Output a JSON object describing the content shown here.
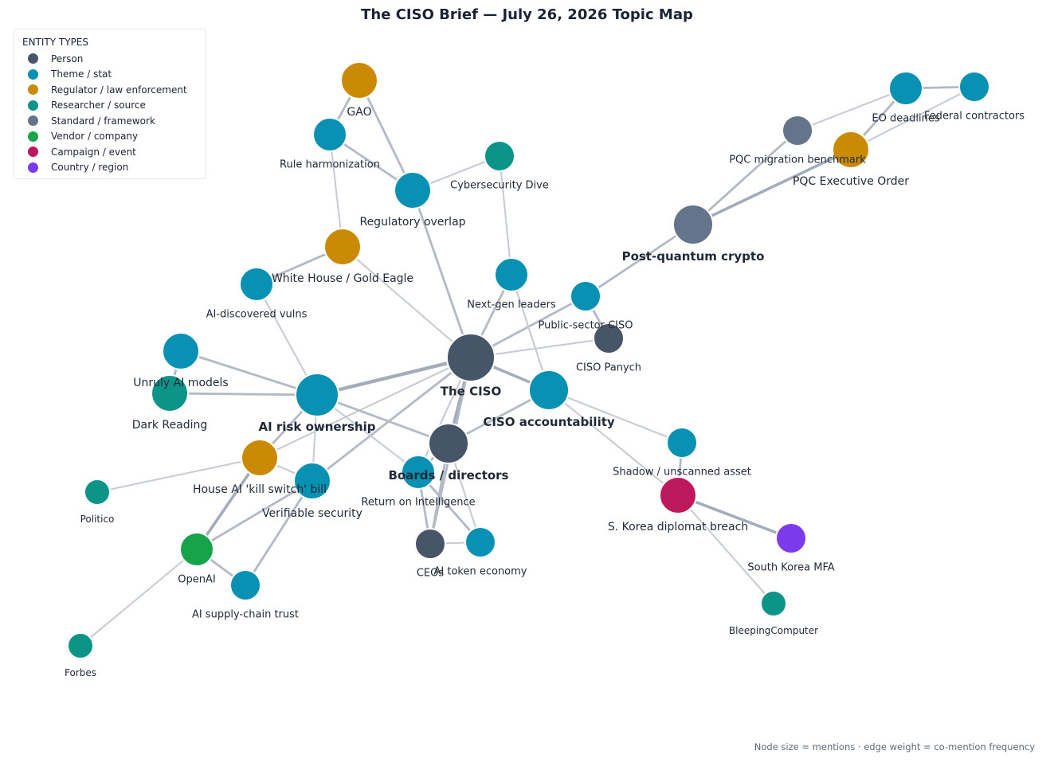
{
  "title": "The CISO Brief — July 26, 2026 Topic Map",
  "legend": {
    "title": "ENTITY TYPES",
    "items": [
      {
        "key": "person",
        "label": "Person",
        "color": "#475569"
      },
      {
        "key": "theme",
        "label": "Theme / stat",
        "color": "#0891b2"
      },
      {
        "key": "regulator",
        "label": "Regulator / law enforcement",
        "color": "#ca8a04"
      },
      {
        "key": "researcher",
        "label": "Researcher / source",
        "color": "#0d9488"
      },
      {
        "key": "standard",
        "label": "Standard / framework",
        "color": "#64748b"
      },
      {
        "key": "vendor",
        "label": "Vendor / company",
        "color": "#16a34a"
      },
      {
        "key": "campaign",
        "label": "Campaign / event",
        "color": "#be185d"
      },
      {
        "key": "country",
        "label": "Country / region",
        "color": "#7c3aed"
      }
    ]
  },
  "footnote": "Node size = mentions  ·  edge weight = co-mention frequency",
  "nodes": [
    {
      "id": "ciso",
      "label": "The CISO",
      "type": "person",
      "bold": true
    },
    {
      "id": "airisk",
      "label": "AI risk ownership",
      "type": "theme",
      "bold": true
    },
    {
      "id": "boards",
      "label": "Boards / directors",
      "type": "person",
      "bold": true
    },
    {
      "id": "cisoacc",
      "label": "CISO accountability",
      "type": "theme",
      "bold": true
    },
    {
      "id": "pqc",
      "label": "Post-quantum crypto",
      "type": "standard",
      "bold": true
    },
    {
      "id": "gao",
      "label": "GAO",
      "type": "regulator"
    },
    {
      "id": "ruleharm",
      "label": "Rule harmonization",
      "type": "theme"
    },
    {
      "id": "regover",
      "label": "Regulatory overlap",
      "type": "theme"
    },
    {
      "id": "cyberdive",
      "label": "Cybersecurity Dive",
      "type": "researcher"
    },
    {
      "id": "whitehouse",
      "label": "White House / Gold Eagle",
      "type": "regulator"
    },
    {
      "id": "aivulns",
      "label": "AI-discovered vulns",
      "type": "theme"
    },
    {
      "id": "nextgen",
      "label": "Next-gen leaders",
      "type": "theme"
    },
    {
      "id": "pubciso",
      "label": "Public-sector CISO",
      "type": "theme"
    },
    {
      "id": "panych",
      "label": "CISO Panych",
      "type": "person"
    },
    {
      "id": "unruly",
      "label": "Unruly AI models",
      "type": "theme"
    },
    {
      "id": "darkreading",
      "label": "Dark Reading",
      "type": "researcher"
    },
    {
      "id": "killswitch",
      "label": "House AI 'kill switch' bill",
      "type": "regulator"
    },
    {
      "id": "verifiable",
      "label": "Verifiable security",
      "type": "theme"
    },
    {
      "id": "politico",
      "label": "Politico",
      "type": "researcher"
    },
    {
      "id": "openai",
      "label": "OpenAI",
      "type": "vendor"
    },
    {
      "id": "supplychain",
      "label": "AI supply-chain trust",
      "type": "theme"
    },
    {
      "id": "forbes",
      "label": "Forbes",
      "type": "researcher"
    },
    {
      "id": "roi",
      "label": "Return on Intelligence",
      "type": "theme"
    },
    {
      "id": "ceos",
      "label": "CEOs",
      "type": "person"
    },
    {
      "id": "aitoken",
      "label": "AI token economy",
      "type": "theme"
    },
    {
      "id": "shadow",
      "label": "Shadow / unscanned asset",
      "type": "theme"
    },
    {
      "id": "skorea",
      "label": "S. Korea diplomat breach",
      "type": "campaign"
    },
    {
      "id": "skmfa",
      "label": "South Korea MFA",
      "type": "country"
    },
    {
      "id": "bleeping",
      "label": "BleepingComputer",
      "type": "researcher"
    },
    {
      "id": "pqcbench",
      "label": "PQC migration benchmark",
      "type": "standard"
    },
    {
      "id": "pqceo",
      "label": "PQC Executive Order",
      "type": "regulator"
    },
    {
      "id": "eodead",
      "label": "EO deadlines",
      "type": "theme"
    },
    {
      "id": "fedcon",
      "label": "Federal contractors",
      "type": "theme"
    }
  ],
  "edges": [
    {
      "source": "ciso",
      "target": "airisk",
      "weight": 5
    },
    {
      "source": "ciso",
      "target": "boards",
      "weight": 4
    },
    {
      "source": "ciso",
      "target": "cisoacc",
      "weight": 4
    },
    {
      "source": "ciso",
      "target": "regover",
      "weight": 3
    },
    {
      "source": "ciso",
      "target": "nextgen",
      "weight": 3
    },
    {
      "source": "ciso",
      "target": "pubciso",
      "weight": 3
    },
    {
      "source": "ciso",
      "target": "panych",
      "weight": 2
    },
    {
      "source": "ciso",
      "target": "whitehouse",
      "weight": 2
    },
    {
      "source": "ciso",
      "target": "verifiable",
      "weight": 3
    },
    {
      "source": "ciso",
      "target": "killswitch",
      "weight": 2
    },
    {
      "source": "ciso",
      "target": "roi",
      "weight": 2
    },
    {
      "source": "ciso",
      "target": "ceos",
      "weight": 3
    },
    {
      "source": "gao",
      "target": "ruleharm",
      "weight": 3
    },
    {
      "source": "gao",
      "target": "regover",
      "weight": 3
    },
    {
      "source": "ruleharm",
      "target": "regover",
      "weight": 3
    },
    {
      "source": "ruleharm",
      "target": "whitehouse",
      "weight": 2
    },
    {
      "source": "regover",
      "target": "cyberdive",
      "weight": 2
    },
    {
      "source": "cyberdive",
      "target": "nextgen",
      "weight": 2
    },
    {
      "source": "nextgen",
      "target": "cisoacc",
      "weight": 2
    },
    {
      "source": "whitehouse",
      "target": "aivulns",
      "weight": 3
    },
    {
      "source": "aivulns",
      "target": "airisk",
      "weight": 2
    },
    {
      "source": "pubciso",
      "target": "pqc",
      "weight": 3
    },
    {
      "source": "pubciso",
      "target": "panych",
      "weight": 3
    },
    {
      "source": "pqc",
      "target": "pqcbench",
      "weight": 3
    },
    {
      "source": "pqc",
      "target": "pqceo",
      "weight": 4
    },
    {
      "source": "pqcbench",
      "target": "eodead",
      "weight": 2
    },
    {
      "source": "pqceo",
      "target": "eodead",
      "weight": 3
    },
    {
      "source": "pqceo",
      "target": "fedcon",
      "weight": 2
    },
    {
      "source": "eodead",
      "target": "fedcon",
      "weight": 3
    },
    {
      "source": "unruly",
      "target": "airisk",
      "weight": 3
    },
    {
      "source": "unruly",
      "target": "darkreading",
      "weight": 3
    },
    {
      "source": "darkreading",
      "target": "airisk",
      "weight": 3
    },
    {
      "source": "airisk",
      "target": "killswitch",
      "weight": 3
    },
    {
      "source": "airisk",
      "target": "verifiable",
      "weight": 2
    },
    {
      "source": "airisk",
      "target": "boards",
      "weight": 3
    },
    {
      "source": "airisk",
      "target": "roi",
      "weight": 2
    },
    {
      "source": "killswitch",
      "target": "politico",
      "weight": 2
    },
    {
      "source": "killswitch",
      "target": "openai",
      "weight": 4
    },
    {
      "source": "killswitch",
      "target": "verifiable",
      "weight": 2
    },
    {
      "source": "verifiable",
      "target": "openai",
      "weight": 3
    },
    {
      "source": "verifiable",
      "target": "supplychain",
      "weight": 3
    },
    {
      "source": "openai",
      "target": "supplychain",
      "weight": 3
    },
    {
      "source": "openai",
      "target": "forbes",
      "weight": 2
    },
    {
      "source": "boards",
      "target": "cisoacc",
      "weight": 3
    },
    {
      "source": "boards",
      "target": "roi",
      "weight": 3
    },
    {
      "source": "boards",
      "target": "ceos",
      "weight": 3
    },
    {
      "source": "boards",
      "target": "aitoken",
      "weight": 2
    },
    {
      "source": "roi",
      "target": "ceos",
      "weight": 3
    },
    {
      "source": "roi",
      "target": "aitoken",
      "weight": 3
    },
    {
      "source": "ceos",
      "target": "aitoken",
      "weight": 2
    },
    {
      "source": "cisoacc",
      "target": "shadow",
      "weight": 2
    },
    {
      "source": "cisoacc",
      "target": "skorea",
      "weight": 2
    },
    {
      "source": "shadow",
      "target": "skorea",
      "weight": 3
    },
    {
      "source": "skorea",
      "target": "skmfa",
      "weight": 4
    },
    {
      "source": "skorea",
      "target": "bleeping",
      "weight": 2
    }
  ]
}
